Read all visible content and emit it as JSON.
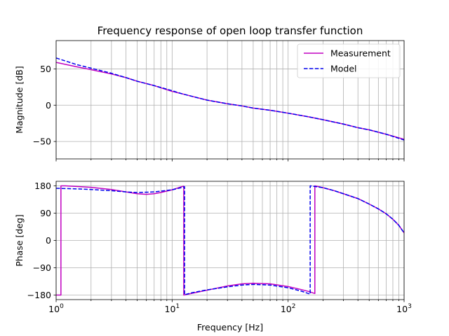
{
  "chart_data": {
    "type": "line",
    "title": "Frequency response of open loop transfer function",
    "xlabel": "Frequency [Hz]",
    "xscale": "log",
    "xlim": [
      1,
      1000
    ],
    "xticks": [
      1,
      10,
      100,
      1000
    ],
    "xtick_labels": [
      {
        "base": "10",
        "exp": "0"
      },
      {
        "base": "10",
        "exp": "1"
      },
      {
        "base": "10",
        "exp": "2"
      },
      {
        "base": "10",
        "exp": "3"
      }
    ],
    "grid": "on (major and minor x gridlines, major y gridlines)",
    "legend_placement": "top-right of magnitude panel",
    "panels": [
      {
        "ylabel": "Magnitude [dB]",
        "ylim": [
          -74,
          89
        ],
        "yticks": [
          50,
          0,
          -50
        ],
        "ytick_labels": [
          "50",
          "0",
          "−50"
        ],
        "show_legend": true,
        "show_xtick_labels": false,
        "series": [
          {
            "name": "Measurement",
            "color": "#c000c0",
            "dash": "solid",
            "x": [
              1,
              1.5,
              2,
              3,
              4,
              5,
              7,
              10,
              12,
              15,
              20,
              30,
              40,
              50,
              70,
              100,
              150,
              200,
              300,
              400,
              500,
              700,
              1000
            ],
            "y": [
              59,
              53,
              49,
              43,
              38,
              33,
              27,
              19,
              16,
              12,
              7,
              2,
              -1,
              -4,
              -7,
              -11,
              -16,
              -20,
              -26,
              -31,
              -34,
              -40,
              -47
            ]
          },
          {
            "name": "Model",
            "color": "#0000ee",
            "dash": "dashed",
            "x": [
              1,
              1.5,
              2,
              3,
              4,
              5,
              7,
              10,
              12,
              15,
              20,
              30,
              40,
              50,
              70,
              100,
              150,
              200,
              300,
              400,
              500,
              700,
              1000
            ],
            "y": [
              65,
              56,
              51,
              44,
              38,
              33,
              27,
              20,
              16,
              12,
              7,
              2,
              -1,
              -4,
              -7,
              -11,
              -16,
              -20,
              -26,
              -31,
              -34,
              -40,
              -48
            ]
          }
        ]
      },
      {
        "ylabel": "Phase [deg]",
        "ylim": [
          -195,
          195
        ],
        "yticks": [
          180,
          90,
          0,
          -90,
          -180
        ],
        "ytick_labels": [
          "180",
          "90",
          "0",
          "−90",
          "−180"
        ],
        "show_legend": false,
        "show_xtick_labels": true,
        "series": [
          {
            "name": "Measurement",
            "color": "#c000c0",
            "dash": "solid",
            "x": [
              1,
              1.1,
              1.1,
              1.2,
              1.5,
              2,
              3,
              4,
              5,
              6,
              7,
              8,
              10,
              11,
              12,
              12.6,
              12.6,
              15,
              20,
              30,
              40,
              50,
              70,
              100,
              130,
              150,
              170,
              170,
              180,
              200,
              250,
              300,
              400,
              500,
              600,
              700,
              800,
              900,
              1000
            ],
            "y": [
              -180,
              -180,
              180,
              180,
              178,
              175,
              168,
              160,
              154,
              152,
              154,
              158,
              167,
              172,
              177,
              179,
              -180,
              -174,
              -164,
              -150,
              -143,
              -141,
              -143,
              -152,
              -162,
              -168,
              -175,
              180,
              178,
              174,
              164,
              154,
              138,
              120,
              104,
              88,
              70,
              50,
              25
            ]
          },
          {
            "name": "Model",
            "color": "#0000ee",
            "dash": "dashed",
            "x": [
              1,
              1.5,
              2,
              3,
              4,
              5,
              7,
              10,
              12,
              12.8,
              12.8,
              15,
              20,
              30,
              40,
              50,
              70,
              100,
              130,
              155,
              155,
              170,
              200,
              250,
              300,
              400,
              500,
              600,
              700,
              800,
              900,
              1000
            ],
            "y": [
              172,
              170,
              168,
              164,
              160,
              158,
              160,
              167,
              174,
              177,
              -179,
              -172,
              -163,
              -153,
              -147,
              -145,
              -147,
              -156,
              -167,
              -177,
              180,
              178,
              174,
              164,
              154,
              138,
              120,
              104,
              88,
              70,
              50,
              25
            ]
          }
        ]
      }
    ]
  }
}
